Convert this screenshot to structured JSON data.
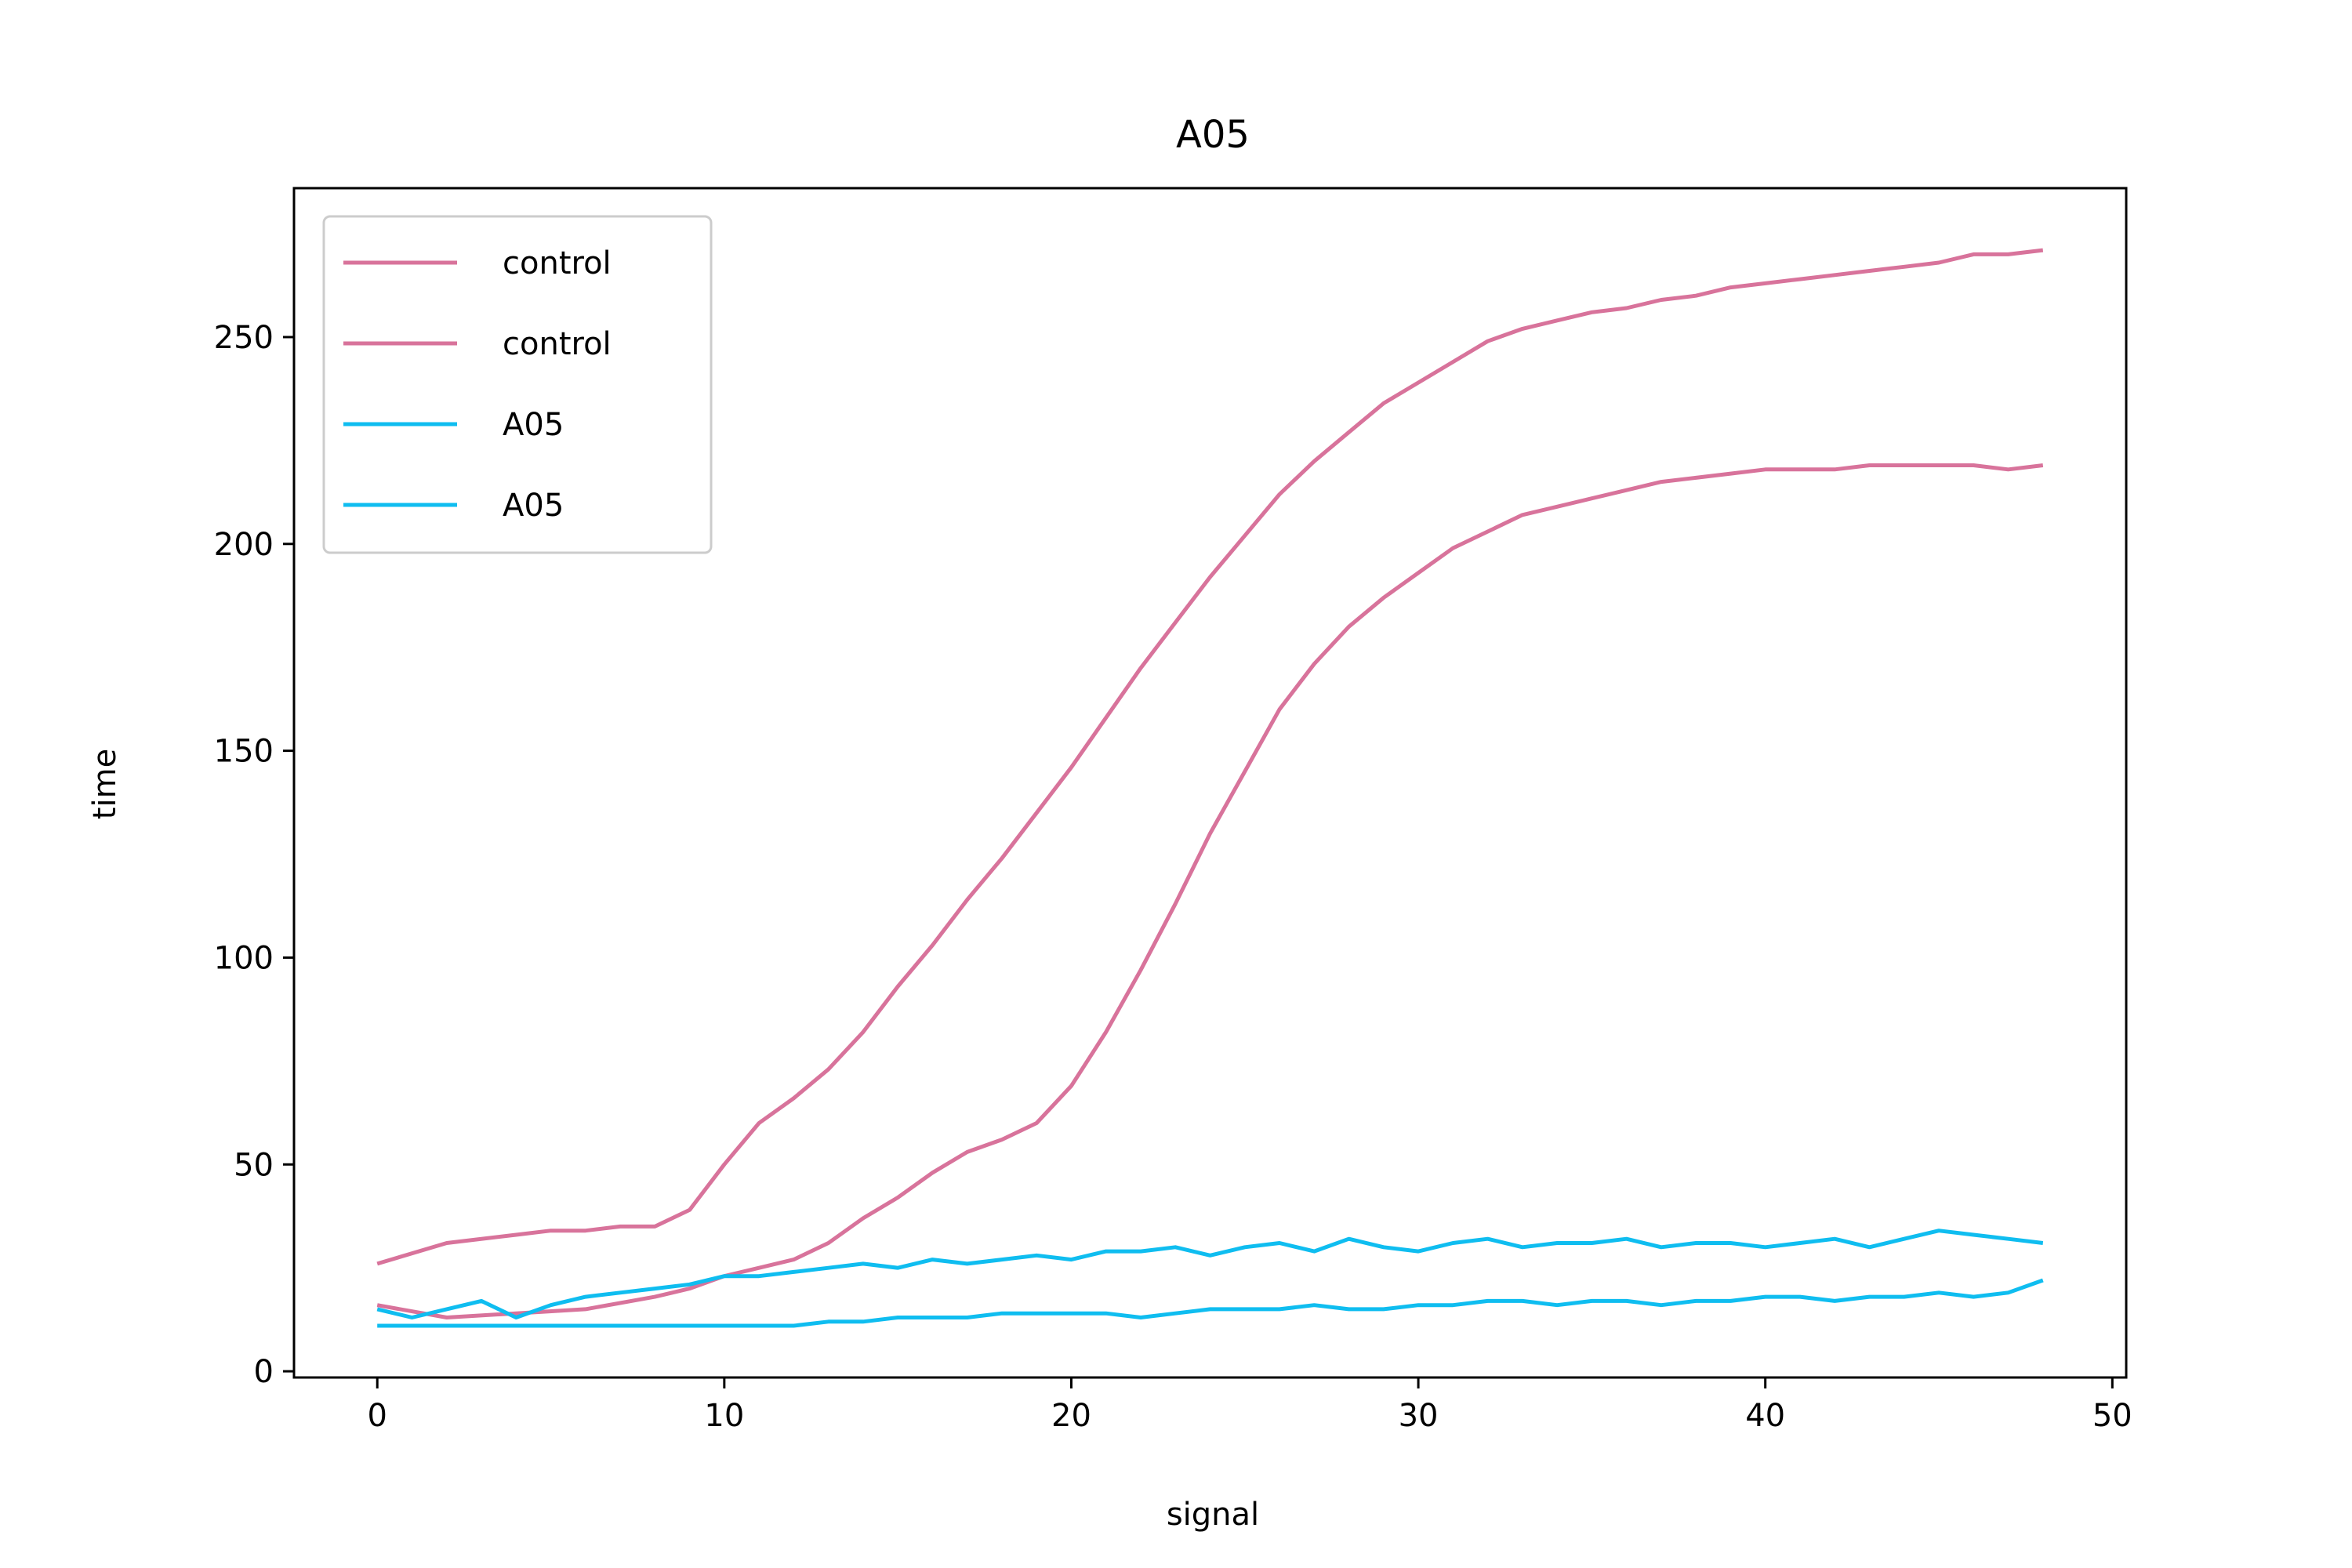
{
  "chart_data": {
    "type": "line",
    "title": "A05",
    "xlabel": "signal",
    "ylabel": "time",
    "xlim": [
      -2.4,
      50.4
    ],
    "ylim": [
      -1.5,
      286
    ],
    "xticks": [
      0,
      10,
      20,
      30,
      40,
      50
    ],
    "yticks": [
      0,
      50,
      100,
      150,
      200,
      250
    ],
    "grid": false,
    "legend": "upper left",
    "series": [
      {
        "name": "control",
        "color": "#d8739b",
        "x": [
          0,
          2,
          4,
          5,
          6,
          7,
          8,
          9,
          10,
          11,
          12,
          13,
          14,
          15,
          16,
          17,
          18,
          19,
          20,
          21,
          22,
          23,
          24,
          25,
          26,
          27,
          28,
          29,
          30,
          31,
          32,
          33,
          34,
          35,
          36,
          37,
          38,
          39,
          40,
          41,
          42,
          43,
          44,
          45,
          46,
          47,
          48
        ],
        "y": [
          26,
          31,
          33,
          34,
          34,
          35,
          35,
          39,
          50,
          60,
          66,
          73,
          82,
          93,
          103,
          114,
          124,
          135,
          146,
          158,
          170,
          181,
          192,
          202,
          212,
          220,
          227,
          234,
          239,
          244,
          249,
          252,
          254,
          256,
          257,
          259,
          260,
          262,
          263,
          264,
          265,
          266,
          267,
          268,
          270,
          270,
          271
        ]
      },
      {
        "name": "control",
        "color": "#d8739b",
        "x": [
          0,
          2,
          4,
          6,
          8,
          9,
          10,
          11,
          12,
          13,
          14,
          15,
          16,
          17,
          18,
          19,
          20,
          21,
          22,
          23,
          24,
          25,
          26,
          27,
          28,
          29,
          30,
          31,
          32,
          33,
          34,
          35,
          36,
          37,
          38,
          39,
          40,
          41,
          42,
          43,
          44,
          45,
          46,
          47,
          48
        ],
        "y": [
          16,
          13,
          14,
          15,
          18,
          20,
          23,
          25,
          27,
          31,
          37,
          42,
          48,
          53,
          56,
          60,
          69,
          82,
          97,
          113,
          130,
          145,
          160,
          171,
          180,
          187,
          193,
          199,
          203,
          207,
          209,
          211,
          213,
          215,
          216,
          217,
          218,
          218,
          218,
          219,
          219,
          219,
          219,
          218,
          219
        ]
      },
      {
        "name": "A05",
        "color": "#0fbdf0",
        "x": [
          0,
          1,
          2,
          3,
          4,
          5,
          6,
          7,
          8,
          9,
          10,
          11,
          12,
          13,
          14,
          15,
          16,
          17,
          18,
          19,
          20,
          21,
          22,
          23,
          24,
          25,
          26,
          27,
          28,
          29,
          30,
          31,
          32,
          33,
          34,
          35,
          36,
          37,
          38,
          39,
          40,
          41,
          42,
          43,
          44,
          45,
          46,
          47,
          48
        ],
        "y": [
          15,
          13,
          15,
          17,
          13,
          16,
          18,
          19,
          20,
          21,
          23,
          23,
          24,
          25,
          26,
          25,
          27,
          26,
          27,
          28,
          27,
          29,
          29,
          30,
          28,
          30,
          31,
          29,
          32,
          30,
          29,
          31,
          32,
          30,
          31,
          31,
          32,
          30,
          31,
          31,
          30,
          31,
          32,
          30,
          32,
          34,
          33,
          32,
          31
        ]
      },
      {
        "name": "A05",
        "color": "#0fbdf0",
        "x": [
          0,
          1,
          2,
          3,
          4,
          5,
          6,
          7,
          8,
          9,
          10,
          11,
          12,
          13,
          14,
          15,
          16,
          17,
          18,
          19,
          20,
          21,
          22,
          23,
          24,
          25,
          26,
          27,
          28,
          29,
          30,
          31,
          32,
          33,
          34,
          35,
          36,
          37,
          38,
          39,
          40,
          41,
          42,
          43,
          44,
          45,
          46,
          47,
          48
        ],
        "y": [
          11,
          11,
          11,
          11,
          11,
          11,
          11,
          11,
          11,
          11,
          11,
          11,
          11,
          12,
          12,
          13,
          13,
          13,
          14,
          14,
          14,
          14,
          13,
          14,
          15,
          15,
          15,
          16,
          15,
          15,
          16,
          16,
          17,
          17,
          16,
          17,
          17,
          16,
          17,
          17,
          18,
          18,
          17,
          18,
          18,
          19,
          18,
          19,
          22
        ]
      }
    ]
  }
}
